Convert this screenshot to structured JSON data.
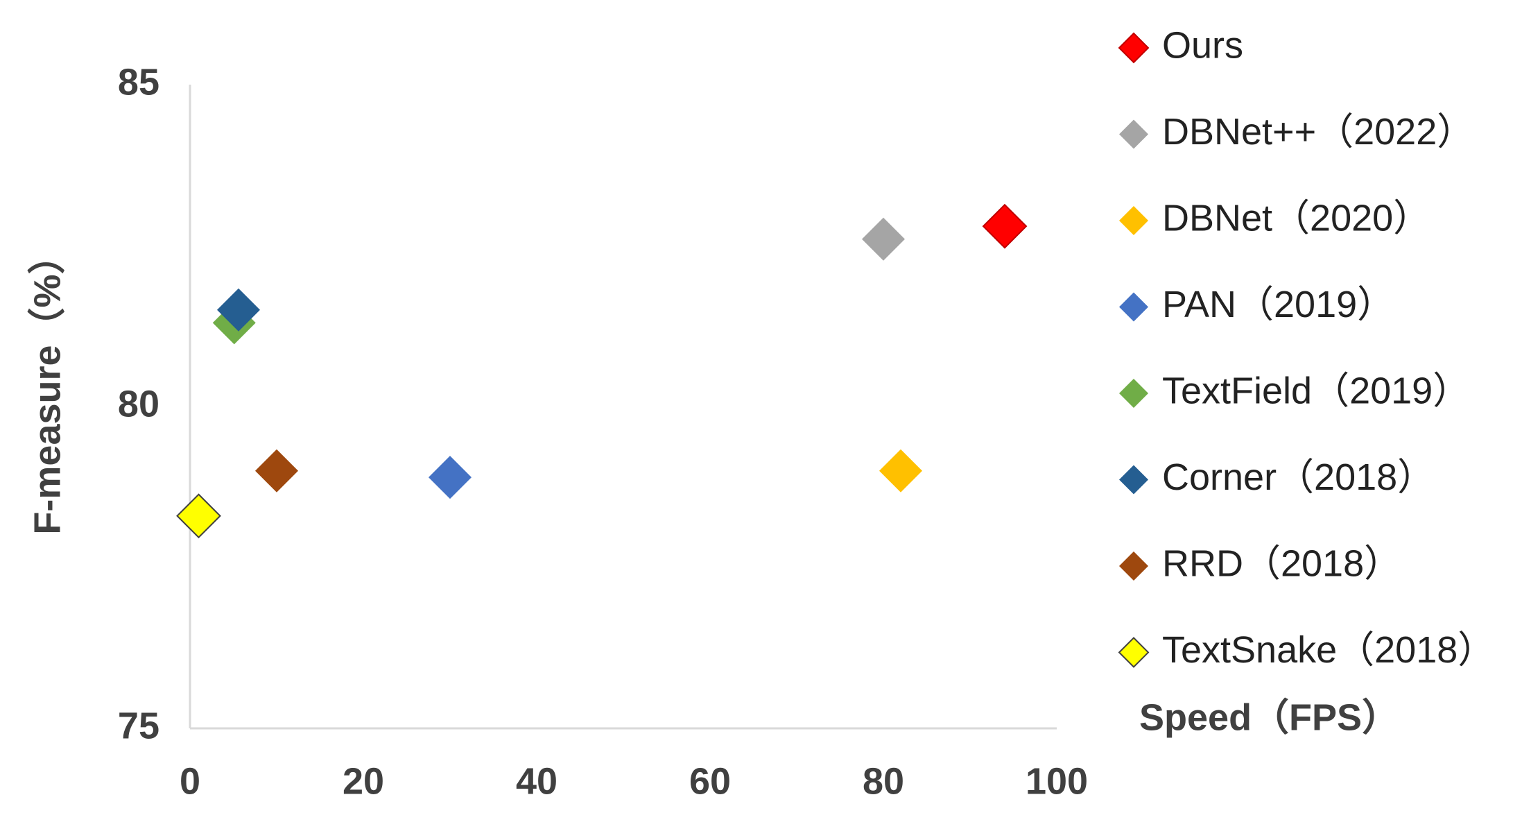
{
  "chart_data": {
    "type": "scatter",
    "x_label": "Speed（FPS）",
    "y_label": "F-measure（%）",
    "xlim": [
      0,
      100
    ],
    "xticks": [
      0,
      20,
      40,
      60,
      80,
      100
    ],
    "ylim": [
      75,
      85
    ],
    "yticks": [
      75,
      80,
      85
    ],
    "series": [
      {
        "name": "Ours",
        "color": "#ff0000",
        "x": [
          94
        ],
        "y": [
          82.8
        ]
      },
      {
        "name": "DBNet++（2022）",
        "color": "#a5a5a5",
        "x": [
          80
        ],
        "y": [
          82.6
        ]
      },
      {
        "name": "DBNet（2020）",
        "color": "#ffc000",
        "x": [
          82
        ],
        "y": [
          79.0
        ]
      },
      {
        "name": "PAN（2019）",
        "color": "#4472c4",
        "x": [
          30
        ],
        "y": [
          78.9
        ]
      },
      {
        "name": "TextField（2019）",
        "color": "#70ad47",
        "x": [
          5.1
        ],
        "y": [
          81.3
        ]
      },
      {
        "name": "Corner（2018）",
        "color": "#255e91",
        "x": [
          5.6
        ],
        "y": [
          81.5
        ]
      },
      {
        "name": "RRD（2018）",
        "color": "#9e480e",
        "x": [
          10
        ],
        "y": [
          79.0
        ]
      },
      {
        "name": "TextSnake（2018）",
        "color": "#ffff00",
        "x": [
          1
        ],
        "y": [
          78.3
        ]
      }
    ]
  }
}
